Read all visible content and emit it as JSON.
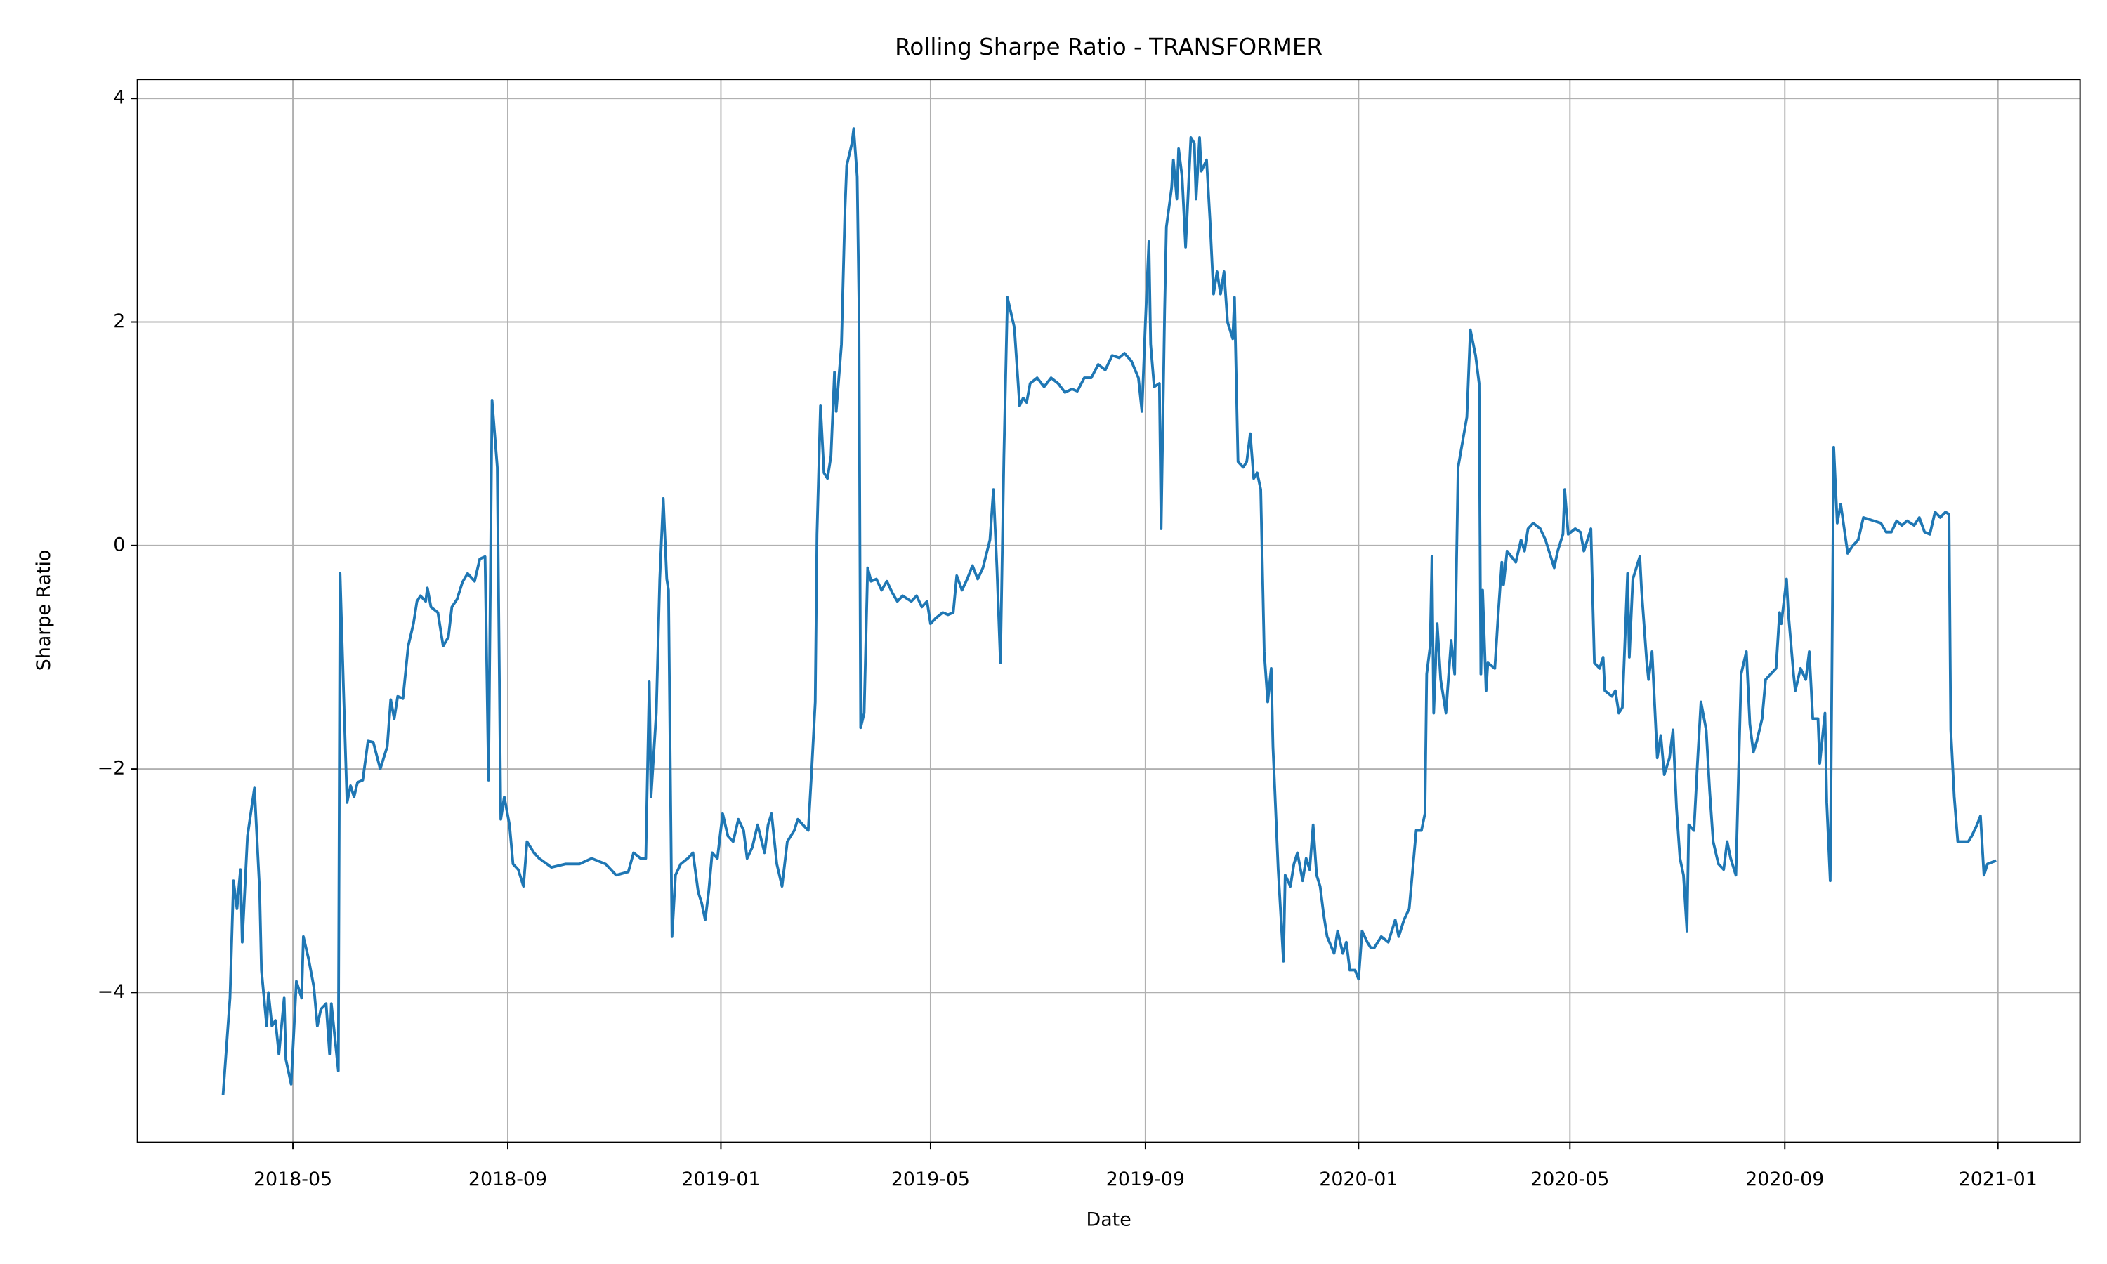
{
  "chart_data": {
    "type": "line",
    "title": "Rolling Sharpe Ratio - TRANSFORMER",
    "x_label": "Date",
    "y_label": "Sharpe Ratio",
    "color": "#1f77b4",
    "grid": true,
    "xlim": [
      "2018-02-01",
      "2021-02-17"
    ],
    "xticks": [
      {
        "value": "2018-05-01",
        "label": "2018-05"
      },
      {
        "value": "2018-09-01",
        "label": "2018-09"
      },
      {
        "value": "2019-01-01",
        "label": "2019-01"
      },
      {
        "value": "2019-05-01",
        "label": "2019-05"
      },
      {
        "value": "2019-09-01",
        "label": "2019-09"
      },
      {
        "value": "2020-01-01",
        "label": "2020-01"
      },
      {
        "value": "2020-05-01",
        "label": "2020-05"
      },
      {
        "value": "2020-09-01",
        "label": "2020-09"
      },
      {
        "value": "2021-01-01",
        "label": "2021-01"
      }
    ],
    "ylim": [
      -5.34,
      4.17
    ],
    "yticks": [
      {
        "value": -4,
        "label": "−4"
      },
      {
        "value": -2,
        "label": "−2"
      },
      0,
      2,
      4
    ],
    "x": [
      "2018-03-22",
      "2018-03-26",
      "2018-03-28",
      "2018-03-30",
      "2018-04-01",
      "2018-04-02",
      "2018-04-05",
      "2018-04-09",
      "2018-04-12",
      "2018-04-13",
      "2018-04-16",
      "2018-04-17",
      "2018-04-19",
      "2018-04-21",
      "2018-04-23",
      "2018-04-26",
      "2018-04-27",
      "2018-04-30",
      "2018-05-03",
      "2018-05-06",
      "2018-05-07",
      "2018-05-10",
      "2018-05-13",
      "2018-05-15",
      "2018-05-17",
      "2018-05-20",
      "2018-05-22",
      "2018-05-23",
      "2018-05-27",
      "2018-05-28",
      "2018-05-30",
      "2018-06-01",
      "2018-06-03",
      "2018-06-05",
      "2018-06-07",
      "2018-06-10",
      "2018-06-13",
      "2018-06-16",
      "2018-06-20",
      "2018-06-24",
      "2018-06-26",
      "2018-06-28",
      "2018-06-30",
      "2018-07-03",
      "2018-07-06",
      "2018-07-09",
      "2018-07-11",
      "2018-07-13",
      "2018-07-16",
      "2018-07-17",
      "2018-07-19",
      "2018-07-23",
      "2018-07-26",
      "2018-07-29",
      "2018-07-31",
      "2018-08-03",
      "2018-08-06",
      "2018-08-09",
      "2018-08-13",
      "2018-08-16",
      "2018-08-19",
      "2018-08-21",
      "2018-08-23",
      "2018-08-26",
      "2018-08-28",
      "2018-08-30",
      "2018-09-02",
      "2018-09-04",
      "2018-09-07",
      "2018-09-10",
      "2018-09-12",
      "2018-09-16",
      "2018-09-19",
      "2018-09-26",
      "2018-10-04",
      "2018-10-12",
      "2018-10-19",
      "2018-10-27",
      "2018-11-02",
      "2018-11-09",
      "2018-11-12",
      "2018-11-16",
      "2018-11-19",
      "2018-11-21",
      "2018-11-22",
      "2018-11-25",
      "2018-11-27",
      "2018-11-29",
      "2018-12-01",
      "2018-12-02",
      "2018-12-04",
      "2018-12-06",
      "2018-12-09",
      "2018-12-13",
      "2018-12-16",
      "2018-12-19",
      "2018-12-21",
      "2018-12-23",
      "2018-12-25",
      "2018-12-27",
      "2018-12-30",
      "2019-01-02",
      "2019-01-05",
      "2019-01-08",
      "2019-01-11",
      "2019-01-14",
      "2019-01-16",
      "2019-01-19",
      "2019-01-22",
      "2019-01-26",
      "2019-01-28",
      "2019-01-30",
      "2019-02-02",
      "2019-02-05",
      "2019-02-08",
      "2019-02-12",
      "2019-02-14",
      "2019-02-17",
      "2019-02-20",
      "2019-02-22",
      "2019-02-24",
      "2019-02-25",
      "2019-02-27",
      "2019-03-01",
      "2019-03-03",
      "2019-03-05",
      "2019-03-07",
      "2019-03-08",
      "2019-03-11",
      "2019-03-13",
      "2019-03-14",
      "2019-03-17",
      "2019-03-18",
      "2019-03-20",
      "2019-03-21",
      "2019-03-22",
      "2019-03-24",
      "2019-03-26",
      "2019-03-28",
      "2019-03-31",
      "2019-04-03",
      "2019-04-06",
      "2019-04-09",
      "2019-04-12",
      "2019-04-15",
      "2019-04-20",
      "2019-04-23",
      "2019-04-26",
      "2019-04-29",
      "2019-05-01",
      "2019-05-04",
      "2019-05-08",
      "2019-05-11",
      "2019-05-14",
      "2019-05-16",
      "2019-05-19",
      "2019-05-22",
      "2019-05-25",
      "2019-05-28",
      "2019-05-31",
      "2019-06-04",
      "2019-06-06",
      "2019-06-08",
      "2019-06-10",
      "2019-06-12",
      "2019-06-14",
      "2019-06-18",
      "2019-06-21",
      "2019-06-23",
      "2019-06-25",
      "2019-06-27",
      "2019-07-01",
      "2019-07-05",
      "2019-07-09",
      "2019-07-13",
      "2019-07-17",
      "2019-07-21",
      "2019-07-24",
      "2019-07-28",
      "2019-08-01",
      "2019-08-05",
      "2019-08-09",
      "2019-08-13",
      "2019-08-17",
      "2019-08-20",
      "2019-08-24",
      "2019-08-28",
      "2019-08-30",
      "2019-09-01",
      "2019-09-03",
      "2019-09-04",
      "2019-09-06",
      "2019-09-09",
      "2019-09-10",
      "2019-09-12",
      "2019-09-13",
      "2019-09-16",
      "2019-09-17",
      "2019-09-19",
      "2019-09-20",
      "2019-09-22",
      "2019-09-24",
      "2019-09-27",
      "2019-09-29",
      "2019-09-30",
      "2019-10-02",
      "2019-10-03",
      "2019-10-06",
      "2019-10-08",
      "2019-10-10",
      "2019-10-12",
      "2019-10-14",
      "2019-10-16",
      "2019-10-18",
      "2019-10-21",
      "2019-10-22",
      "2019-10-24",
      "2019-10-27",
      "2019-10-29",
      "2019-10-31",
      "2019-11-02",
      "2019-11-04",
      "2019-11-06",
      "2019-11-08",
      "2019-11-10",
      "2019-11-12",
      "2019-11-13",
      "2019-11-16",
      "2019-11-19",
      "2019-11-20",
      "2019-11-23",
      "2019-11-25",
      "2019-11-27",
      "2019-11-30",
      "2019-12-02",
      "2019-12-04",
      "2019-12-06",
      "2019-12-08",
      "2019-12-10",
      "2019-12-12",
      "2019-12-14",
      "2019-12-18",
      "2019-12-20",
      "2019-12-23",
      "2019-12-25",
      "2019-12-27",
      "2019-12-30",
      "2020-01-01",
      "2020-01-03",
      "2020-01-06",
      "2020-01-08",
      "2020-01-10",
      "2020-01-14",
      "2020-01-18",
      "2020-01-22",
      "2020-01-24",
      "2020-01-27",
      "2020-01-30",
      "2020-02-01",
      "2020-02-03",
      "2020-02-06",
      "2020-02-08",
      "2020-02-09",
      "2020-02-11",
      "2020-02-12",
      "2020-02-13",
      "2020-02-15",
      "2020-02-17",
      "2020-02-20",
      "2020-02-23",
      "2020-02-25",
      "2020-02-27",
      "2020-03-03",
      "2020-03-05",
      "2020-03-08",
      "2020-03-10",
      "2020-03-11",
      "2020-03-12",
      "2020-03-14",
      "2020-03-15",
      "2020-03-19",
      "2020-03-21",
      "2020-03-23",
      "2020-03-24",
      "2020-03-26",
      "2020-03-31",
      "2020-04-03",
      "2020-04-05",
      "2020-04-07",
      "2020-04-10",
      "2020-04-14",
      "2020-04-17",
      "2020-04-20",
      "2020-04-22",
      "2020-04-24",
      "2020-04-27",
      "2020-04-28",
      "2020-04-30",
      "2020-05-04",
      "2020-05-07",
      "2020-05-09",
      "2020-05-13",
      "2020-05-15",
      "2020-05-18",
      "2020-05-20",
      "2020-05-21",
      "2020-05-25",
      "2020-05-27",
      "2020-05-29",
      "2020-05-31",
      "2020-06-03",
      "2020-06-04",
      "2020-06-06",
      "2020-06-08",
      "2020-06-10",
      "2020-06-11",
      "2020-06-14",
      "2020-06-15",
      "2020-06-17",
      "2020-06-20",
      "2020-06-22",
      "2020-06-24",
      "2020-06-27",
      "2020-06-29",
      "2020-07-01",
      "2020-07-03",
      "2020-07-05",
      "2020-07-07",
      "2020-07-08",
      "2020-07-11",
      "2020-07-13",
      "2020-07-15",
      "2020-07-18",
      "2020-07-20",
      "2020-07-22",
      "2020-07-25",
      "2020-07-28",
      "2020-07-30",
      "2020-08-01",
      "2020-08-04",
      "2020-08-07",
      "2020-08-10",
      "2020-08-12",
      "2020-08-14",
      "2020-08-16",
      "2020-08-19",
      "2020-08-21",
      "2020-08-27",
      "2020-08-29",
      "2020-08-30",
      "2020-09-02",
      "2020-09-03",
      "2020-09-06",
      "2020-09-07",
      "2020-09-10",
      "2020-09-13",
      "2020-09-15",
      "2020-09-17",
      "2020-09-20",
      "2020-09-21",
      "2020-09-24",
      "2020-09-25",
      "2020-09-27",
      "2020-09-29",
      "2020-10-01",
      "2020-10-03",
      "2020-10-05",
      "2020-10-07",
      "2020-10-10",
      "2020-10-13",
      "2020-10-16",
      "2020-10-22",
      "2020-10-26",
      "2020-10-29",
      "2020-11-01",
      "2020-11-04",
      "2020-11-07",
      "2020-11-10",
      "2020-11-14",
      "2020-11-17",
      "2020-11-20",
      "2020-11-23",
      "2020-11-26",
      "2020-11-29",
      "2020-12-02",
      "2020-12-04",
      "2020-12-05",
      "2020-12-07",
      "2020-12-09",
      "2020-12-15",
      "2020-12-17",
      "2020-12-20",
      "2020-12-22",
      "2020-12-24",
      "2020-12-26",
      "2020-12-31"
    ],
    "values": [
      -4.92,
      -4.05,
      -3.0,
      -3.25,
      -2.9,
      -3.55,
      -2.6,
      -2.17,
      -3.1,
      -3.8,
      -4.3,
      -4.0,
      -4.3,
      -4.25,
      -4.55,
      -4.05,
      -4.6,
      -4.82,
      -3.9,
      -4.05,
      -3.5,
      -3.7,
      -3.95,
      -4.3,
      -4.15,
      -4.1,
      -4.55,
      -4.1,
      -4.7,
      -0.25,
      -1.3,
      -2.3,
      -2.15,
      -2.25,
      -2.12,
      -2.1,
      -1.75,
      -1.76,
      -2.0,
      -1.8,
      -1.38,
      -1.55,
      -1.35,
      -1.37,
      -0.9,
      -0.7,
      -0.5,
      -0.45,
      -0.5,
      -0.38,
      -0.55,
      -0.6,
      -0.9,
      -0.82,
      -0.55,
      -0.48,
      -0.33,
      -0.25,
      -0.32,
      -0.12,
      -0.1,
      -2.1,
      1.3,
      0.7,
      -2.45,
      -2.25,
      -2.5,
      -2.85,
      -2.9,
      -3.05,
      -2.65,
      -2.75,
      -2.8,
      -2.88,
      -2.85,
      -2.85,
      -2.8,
      -2.85,
      -2.95,
      -2.92,
      -2.75,
      -2.8,
      -2.8,
      -1.22,
      -2.25,
      -1.5,
      -0.3,
      0.42,
      -0.3,
      -0.4,
      -3.5,
      -2.95,
      -2.85,
      -2.8,
      -2.75,
      -3.1,
      -3.2,
      -3.35,
      -3.1,
      -2.75,
      -2.8,
      -2.4,
      -2.6,
      -2.65,
      -2.45,
      -2.55,
      -2.8,
      -2.7,
      -2.5,
      -2.75,
      -2.5,
      -2.4,
      -2.85,
      -3.05,
      -2.65,
      -2.55,
      -2.45,
      -2.5,
      -2.55,
      -2.0,
      -1.4,
      0.1,
      1.25,
      0.65,
      0.6,
      0.8,
      1.55,
      1.2,
      1.8,
      3.0,
      3.4,
      3.6,
      3.73,
      3.3,
      2.2,
      -1.63,
      -1.5,
      -0.2,
      -0.32,
      -0.3,
      -0.4,
      -0.32,
      -0.42,
      -0.5,
      -0.45,
      -0.5,
      -0.45,
      -0.55,
      -0.5,
      -0.7,
      -0.65,
      -0.6,
      -0.62,
      -0.6,
      -0.27,
      -0.4,
      -0.3,
      -0.18,
      -0.3,
      -0.2,
      0.05,
      0.5,
      -0.2,
      -1.05,
      0.8,
      2.22,
      1.95,
      1.25,
      1.32,
      1.28,
      1.45,
      1.5,
      1.42,
      1.5,
      1.45,
      1.37,
      1.4,
      1.38,
      1.5,
      1.5,
      1.62,
      1.57,
      1.7,
      1.68,
      1.72,
      1.65,
      1.5,
      1.2,
      2.0,
      2.72,
      1.8,
      1.42,
      1.45,
      0.15,
      2.1,
      2.85,
      3.2,
      3.45,
      3.1,
      3.55,
      3.3,
      2.67,
      3.65,
      3.6,
      3.1,
      3.65,
      3.35,
      3.45,
      2.9,
      2.25,
      2.45,
      2.25,
      2.45,
      2.0,
      1.85,
      2.22,
      0.75,
      0.7,
      0.75,
      1.0,
      0.6,
      0.65,
      0.5,
      -0.95,
      -1.4,
      -1.1,
      -1.8,
      -2.9,
      -3.72,
      -2.95,
      -3.05,
      -2.85,
      -2.75,
      -3.0,
      -2.8,
      -2.9,
      -2.5,
      -2.95,
      -3.05,
      -3.3,
      -3.5,
      -3.65,
      -3.45,
      -3.65,
      -3.55,
      -3.8,
      -3.8,
      -3.88,
      -3.45,
      -3.55,
      -3.6,
      -3.6,
      -3.5,
      -3.55,
      -3.35,
      -3.5,
      -3.35,
      -3.25,
      -2.9,
      -2.55,
      -2.55,
      -2.4,
      -1.15,
      -0.9,
      -0.1,
      -1.5,
      -0.7,
      -1.2,
      -1.5,
      -0.85,
      -1.15,
      0.7,
      1.15,
      1.93,
      1.7,
      1.45,
      -1.15,
      -0.4,
      -1.3,
      -1.05,
      -1.1,
      -0.6,
      -0.15,
      -0.35,
      -0.05,
      -0.15,
      0.05,
      -0.05,
      0.15,
      0.2,
      0.15,
      0.05,
      -0.1,
      -0.2,
      -0.05,
      0.1,
      0.5,
      0.1,
      0.15,
      0.12,
      -0.05,
      0.15,
      -1.05,
      -1.1,
      -1.0,
      -1.3,
      -1.35,
      -1.3,
      -1.5,
      -1.45,
      -0.25,
      -1.0,
      -0.3,
      -0.2,
      -0.1,
      -0.4,
      -1.05,
      -1.2,
      -0.95,
      -1.9,
      -1.7,
      -2.05,
      -1.9,
      -1.65,
      -2.35,
      -2.8,
      -2.95,
      -3.45,
      -2.5,
      -2.55,
      -1.95,
      -1.4,
      -1.65,
      -2.2,
      -2.65,
      -2.85,
      -2.9,
      -2.65,
      -2.8,
      -2.95,
      -1.15,
      -0.95,
      -1.6,
      -1.85,
      -1.75,
      -1.55,
      -1.2,
      -1.1,
      -0.6,
      -0.7,
      -0.3,
      -0.6,
      -1.15,
      -1.3,
      -1.1,
      -1.2,
      -0.95,
      -1.55,
      -1.55,
      -1.95,
      -1.5,
      -2.3,
      -3.0,
      0.88,
      0.2,
      0.37,
      0.15,
      -0.07,
      0.0,
      0.05,
      0.25,
      0.22,
      0.2,
      0.12,
      0.12,
      0.22,
      0.18,
      0.22,
      0.18,
      0.25,
      0.12,
      0.1,
      0.3,
      0.25,
      0.3,
      0.28,
      -1.65,
      -2.25,
      -2.65,
      -2.65,
      -2.6,
      -2.5,
      -2.42,
      -2.95,
      -2.85,
      -2.82
    ]
  }
}
